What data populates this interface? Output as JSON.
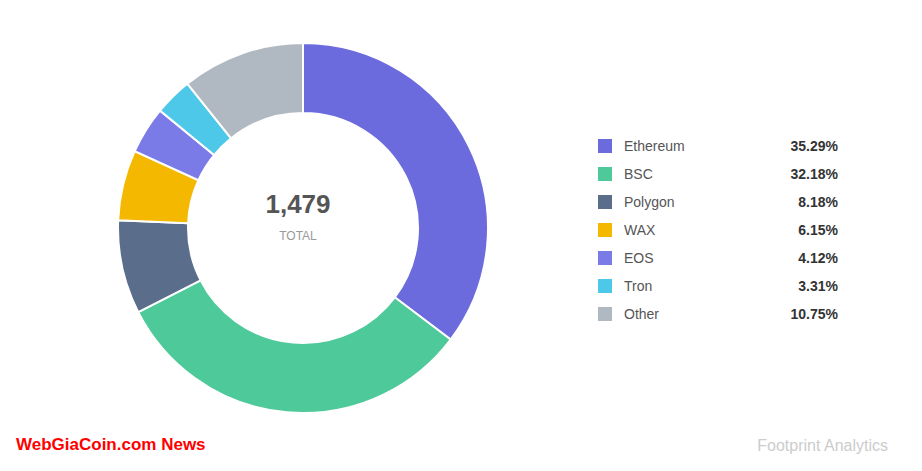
{
  "chart_data": {
    "type": "pie",
    "categories": [
      "Ethereum",
      "BSC",
      "Polygon",
      "WAX",
      "EOS",
      "Tron",
      "Other"
    ],
    "values": [
      35.29,
      32.18,
      8.18,
      6.15,
      4.12,
      3.31,
      10.75
    ],
    "value_labels": [
      "35.29%",
      "32.18%",
      "8.18%",
      "6.15%",
      "4.12%",
      "3.31%",
      "10.75%"
    ],
    "colors": [
      "#6b6bde",
      "#4ec99a",
      "#5a6e8c",
      "#f5b800",
      "#7b7be8",
      "#4ec8e8",
      "#b0b8c1"
    ],
    "annotations": [
      "1,479",
      "TOTAL",
      "Footprint Analytics",
      "WebGiaCoin.com News"
    ],
    "legend": "right"
  }
}
